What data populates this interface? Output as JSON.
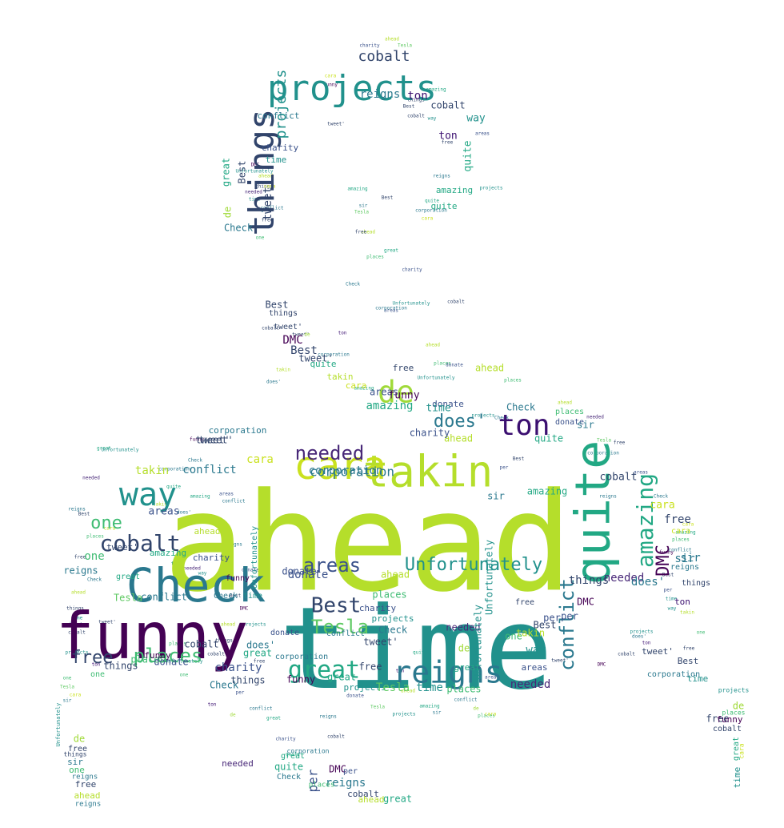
{
  "image": {
    "type": "word-cloud",
    "subject": "silhouette-of-person",
    "palette": [
      "#440154",
      "#3b528b",
      "#21918c",
      "#5ec962",
      "#b5de2b",
      "#fde725"
    ]
  },
  "words": [
    {
      "text": "ahead",
      "color": "#b5de2b"
    },
    {
      "text": "time",
      "color": "#21918c"
    },
    {
      "text": "funny",
      "color": "#440154"
    },
    {
      "text": "Check",
      "color": "#2a788e"
    },
    {
      "text": "quite",
      "color": "#22a884"
    },
    {
      "text": "takin",
      "color": "#b5de2b"
    },
    {
      "text": "projects",
      "color": "#21918c"
    },
    {
      "text": "things",
      "color": "#31446b"
    },
    {
      "text": "way",
      "color": "#21918c"
    },
    {
      "text": "cara",
      "color": "#cae11f"
    },
    {
      "text": "de",
      "color": "#a0da39"
    },
    {
      "text": "ton",
      "color": "#3b0f70"
    },
    {
      "text": "reigns",
      "color": "#2a788e"
    },
    {
      "text": "great",
      "color": "#22a884"
    },
    {
      "text": "amazing",
      "color": "#22a884"
    },
    {
      "text": "Unfortunately",
      "color": "#21918c"
    },
    {
      "text": "cobalt",
      "color": "#31446b"
    },
    {
      "text": "Best",
      "color": "#31446b"
    },
    {
      "text": "Tesla",
      "color": "#5ec962"
    },
    {
      "text": "conflict",
      "color": "#2a788e"
    },
    {
      "text": "places",
      "color": "#3fbc73"
    },
    {
      "text": "areas",
      "color": "#3b528b"
    },
    {
      "text": "needed",
      "color": "#482878"
    },
    {
      "text": "does'",
      "color": "#2a788e"
    },
    {
      "text": "free",
      "color": "#31446b"
    },
    {
      "text": "one",
      "color": "#3fbc73"
    },
    {
      "text": "corporation",
      "color": "#2a788e"
    },
    {
      "text": "charity",
      "color": "#3b528b"
    },
    {
      "text": "DMC",
      "color": "#440154"
    },
    {
      "text": "donate",
      "color": "#3b528b"
    },
    {
      "text": "sir",
      "color": "#2a788e"
    },
    {
      "text": "per",
      "color": "#3b528b"
    },
    {
      "text": "tweet'",
      "color": "#31446b"
    }
  ]
}
